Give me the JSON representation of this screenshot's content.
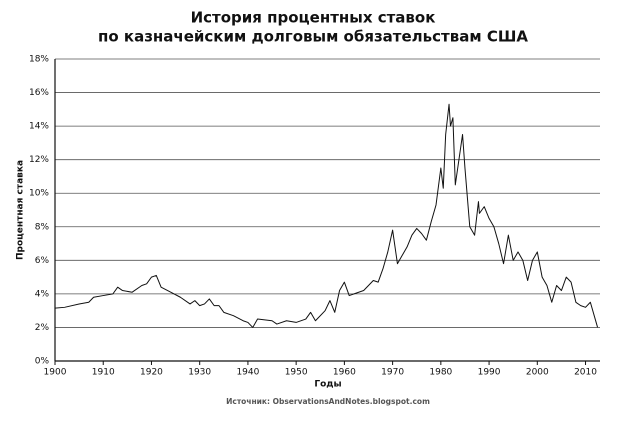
{
  "chart_data": {
    "type": "line",
    "title": [
      "История процентных ставок",
      "по казначейским долговым обязательствам США"
    ],
    "y_label": "Процентная ставка",
    "x_label": "Годы",
    "source": "Источник: ObservationsAndNotes.blogspot.com",
    "x": [
      1900,
      1902,
      1905,
      1907,
      1908,
      1910,
      1912,
      1913,
      1914,
      1916,
      1918,
      1919,
      1920,
      1921,
      1922,
      1924,
      1926,
      1928,
      1929,
      1930,
      1931,
      1932,
      1933,
      1934,
      1935,
      1937,
      1939,
      1940,
      1941,
      1942,
      1945,
      1946,
      1948,
      1950,
      1952,
      1953,
      1954,
      1956,
      1957,
      1958,
      1959,
      1960,
      1961,
      1962,
      1964,
      1966,
      1967,
      1968,
      1969,
      1970,
      1971,
      1972,
      1973,
      1974,
      1975,
      1976,
      1977,
      1978,
      1979,
      1980,
      1980.5,
      1981,
      1981.7,
      1982,
      1982.5,
      1983,
      1983.5,
      1984,
      1984.5,
      1985,
      1986,
      1987,
      1987.8,
      1988,
      1989,
      1990,
      1991,
      1992,
      1993,
      1994,
      1995,
      1996,
      1997,
      1998,
      1999,
      2000,
      2001,
      2002,
      2003,
      2004,
      2005,
      2006,
      2007,
      2008,
      2009,
      2010,
      2011,
      2012.5
    ],
    "series": [
      {
        "name": "Процентная ставка",
        "color": "#111111",
        "values": [
          3.15,
          3.2,
          3.4,
          3.5,
          3.8,
          3.9,
          4.0,
          4.4,
          4.2,
          4.1,
          4.5,
          4.6,
          5.0,
          5.1,
          4.4,
          4.1,
          3.8,
          3.4,
          3.6,
          3.3,
          3.4,
          3.7,
          3.3,
          3.3,
          2.9,
          2.7,
          2.4,
          2.3,
          2.0,
          2.5,
          2.4,
          2.2,
          2.4,
          2.3,
          2.5,
          2.9,
          2.4,
          3.0,
          3.6,
          2.9,
          4.2,
          4.7,
          3.9,
          4.0,
          4.2,
          4.8,
          4.7,
          5.5,
          6.5,
          7.8,
          5.8,
          6.3,
          6.8,
          7.5,
          7.9,
          7.6,
          7.2,
          8.3,
          9.3,
          11.5,
          10.3,
          13.5,
          15.3,
          14.0,
          14.5,
          10.5,
          11.5,
          12.5,
          13.5,
          11.5,
          8.0,
          7.5,
          9.5,
          8.8,
          9.2,
          8.5,
          8.0,
          7.0,
          5.8,
          7.5,
          6.0,
          6.5,
          6.0,
          4.8,
          6.0,
          6.5,
          5.0,
          4.5,
          3.5,
          4.5,
          4.2,
          5.0,
          4.7,
          3.5,
          3.3,
          3.2,
          3.5,
          2.0
        ]
      }
    ],
    "xlim": [
      1900,
      2013
    ],
    "ylim": [
      0,
      18
    ],
    "xticks": [
      1900,
      1910,
      1920,
      1930,
      1940,
      1950,
      1960,
      1970,
      1980,
      1990,
      2000,
      2010
    ],
    "yticks": [
      {
        "value": 0,
        "label": "0%"
      },
      {
        "value": 2,
        "label": "2%"
      },
      {
        "value": 4,
        "label": "4%"
      },
      {
        "value": 6,
        "label": "6%"
      },
      {
        "value": 8,
        "label": "8%"
      },
      {
        "value": 10,
        "label": "10%"
      },
      {
        "value": 12,
        "label": "12%"
      },
      {
        "value": 14,
        "label": "14%"
      },
      {
        "value": 16,
        "label": "16%"
      },
      {
        "value": 18,
        "label": "18%"
      }
    ],
    "grid": true
  }
}
